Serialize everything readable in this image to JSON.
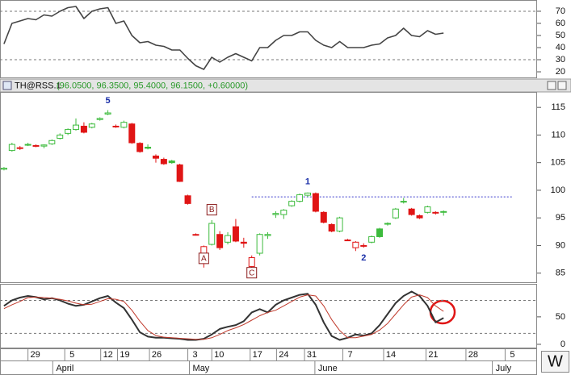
{
  "chart_data": [
    {
      "type": "line",
      "yticks": [
        20,
        30,
        40,
        50,
        60,
        70
      ],
      "ylim": [
        14.7,
        79.3
      ],
      "hlines": [
        70,
        30
      ],
      "color": "#444444",
      "values": [
        43,
        60,
        62,
        64,
        63,
        67,
        66,
        70,
        73,
        74,
        64,
        70,
        72,
        73,
        60,
        62,
        50,
        44,
        45,
        42,
        41,
        38,
        38,
        31,
        25,
        22,
        32,
        28,
        32,
        35,
        32,
        29,
        40,
        40,
        46,
        50,
        50,
        53,
        53,
        46,
        42,
        40,
        45,
        40,
        40,
        40,
        42,
        43,
        48,
        50,
        56,
        50,
        49,
        54,
        51,
        52
      ]
    },
    {
      "type": "candlestick",
      "title": "TH@RSS.1",
      "subtitle": "(96.0500, 96.3500, 95.4000, 96.1500, +0.60000)",
      "yticks": [
        85,
        90,
        95,
        100,
        105,
        110,
        115
      ],
      "ylim": [
        83.2,
        117.8
      ],
      "up_color": "#3dbb3d",
      "down_color": "#e01515",
      "open": [
        103.8,
        107.2,
        107.7,
        108.3,
        108.0,
        108.0,
        108.4,
        109.4,
        110.3,
        111.0,
        111.6,
        111.4,
        112.8,
        113.8,
        111.5,
        111.4,
        112.0,
        108.5,
        107.8,
        106.2,
        105.6,
        105.3,
        104.6,
        99.0,
        92.0,
        88.2,
        90.2,
        92.0,
        90.6,
        93.4,
        90.6,
        86.2,
        88.6,
        91.8,
        95.6,
        95.6,
        97.2,
        98.0,
        99.1,
        99.4,
        96.0,
        93.8,
        92.6,
        91.0,
        89.6,
        90.0,
        90.6,
        93.0,
        94.0,
        95.0,
        98.0,
        96.6,
        95.4,
        96.0,
        96.0,
        96.05
      ],
      "high": [
        104.2,
        108.6,
        108.0,
        108.6,
        108.3,
        108.3,
        109.2,
        110.3,
        111.2,
        113.0,
        112.3,
        112.2,
        113.2,
        114.5,
        111.9,
        112.6,
        112.2,
        108.7,
        108.3,
        106.5,
        105.9,
        105.5,
        104.8,
        99.2,
        92.2,
        90.0,
        94.6,
        92.6,
        92.4,
        94.8,
        91.4,
        88.2,
        92.2,
        92.4,
        96.2,
        96.6,
        98.2,
        99.4,
        99.6,
        99.6,
        96.2,
        94.0,
        95.2,
        91.2,
        90.8,
        90.4,
        91.8,
        93.2,
        94.2,
        96.8,
        98.6,
        96.8,
        95.6,
        97.2,
        96.2,
        96.35
      ],
      "low": [
        103.6,
        107.0,
        107.3,
        108.0,
        107.8,
        107.6,
        108.2,
        109.2,
        110.0,
        110.8,
        110.3,
        111.2,
        112.6,
        113.6,
        111.3,
        111.2,
        108.4,
        106.8,
        107.4,
        105.0,
        104.6,
        104.8,
        101.5,
        97.4,
        91.8,
        86.0,
        90.0,
        89.2,
        90.2,
        90.6,
        89.6,
        85.8,
        88.2,
        91.2,
        95.0,
        94.8,
        97.0,
        97.8,
        98.8,
        96.0,
        94.0,
        92.4,
        92.4,
        90.8,
        89.0,
        89.6,
        90.4,
        91.4,
        93.6,
        94.8,
        97.6,
        95.4,
        94.8,
        95.8,
        95.6,
        95.4
      ],
      "close": [
        104.0,
        108.3,
        107.6,
        108.3,
        108.1,
        108.2,
        109.0,
        110.0,
        111.0,
        111.8,
        110.5,
        112.0,
        113.0,
        114.0,
        111.6,
        112.3,
        108.6,
        107.0,
        107.6,
        105.8,
        104.8,
        105.0,
        101.6,
        97.6,
        92.0,
        89.8,
        94.0,
        89.6,
        91.8,
        90.8,
        90.4,
        87.8,
        92.0,
        92.0,
        95.8,
        96.4,
        98.0,
        99.2,
        99.5,
        96.2,
        94.2,
        92.6,
        95.0,
        91.0,
        90.6,
        90.0,
        91.6,
        91.6,
        94.0,
        96.6,
        98.0,
        95.6,
        95.0,
        97.0,
        96.0,
        96.15
      ],
      "reference_line": {
        "value": 98.8,
        "from": 31,
        "to": 63.7,
        "color": "#3a3acc"
      },
      "annotations": [
        {
          "text": "5",
          "x": 13,
          "y": 116.2,
          "color": "#1a2fa8",
          "boxed": false
        },
        {
          "text": "1",
          "x": 38,
          "y": 101.5,
          "color": "#1a2fa8",
          "boxed": false
        },
        {
          "text": "2",
          "x": 45,
          "y": 87.7,
          "color": "#1a2fa8",
          "boxed": false
        },
        {
          "text": "A",
          "x": 25,
          "y": 87.6,
          "color": "#8b1a1a",
          "boxed": true
        },
        {
          "text": "B",
          "x": 26,
          "y": 96.4,
          "color": "#8b1a1a",
          "boxed": true
        },
        {
          "text": "C",
          "x": 31,
          "y": 85.0,
          "color": "#8b1a1a",
          "boxed": true
        }
      ]
    },
    {
      "type": "line",
      "yticks": [
        0,
        50
      ],
      "ylim": [
        -7.4,
        110
      ],
      "hlines": [
        80,
        20
      ],
      "xlim": [
        -0.5,
        66.7
      ],
      "xticks": [
        {
          "value": 3.0,
          "label": "29"
        },
        {
          "value": 7.6,
          "label": "5"
        },
        {
          "value": 12.1,
          "label": "12"
        },
        {
          "value": 14.2,
          "label": "19"
        },
        {
          "value": 18.2,
          "label": "26"
        },
        {
          "value": 23.0,
          "label": "3"
        },
        {
          "value": 26.0,
          "label": "10"
        },
        {
          "value": 30.8,
          "label": "17"
        },
        {
          "value": 34.1,
          "label": "24"
        },
        {
          "value": 37.6,
          "label": "31"
        },
        {
          "value": 42.4,
          "label": "7"
        },
        {
          "value": 47.5,
          "label": "14"
        },
        {
          "value": 52.8,
          "label": "21"
        },
        {
          "value": 57.8,
          "label": "28"
        },
        {
          "value": 62.7,
          "label": "5"
        }
      ],
      "month_ticks": [
        {
          "value": 6.1,
          "label": "April"
        },
        {
          "value": 23.2,
          "label": "May"
        },
        {
          "value": 38.9,
          "label": "June"
        },
        {
          "value": 61.1,
          "label": "July"
        }
      ],
      "series": [
        {
          "color": "#333333",
          "values": [
            70,
            80,
            85,
            88,
            86,
            82,
            84,
            80,
            74,
            70,
            72,
            78,
            84,
            88,
            76,
            66,
            45,
            22,
            14,
            12,
            12,
            11,
            10,
            8,
            8,
            10,
            18,
            28,
            32,
            35,
            42,
            58,
            64,
            58,
            72,
            80,
            85,
            90,
            92,
            72,
            40,
            15,
            8,
            12,
            18,
            16,
            20,
            35,
            55,
            75,
            88,
            96,
            88,
            70,
            40,
            48
          ]
        },
        {
          "color": "#c0392b",
          "values": [
            65,
            72,
            78,
            85,
            86,
            85,
            84,
            82,
            79,
            75,
            72,
            73,
            78,
            83,
            82,
            78,
            62,
            42,
            25,
            16,
            13,
            12,
            11,
            10,
            9,
            9,
            12,
            18,
            25,
            30,
            36,
            44,
            52,
            58,
            62,
            70,
            78,
            86,
            90,
            88,
            70,
            45,
            25,
            12,
            12,
            15,
            18,
            26,
            38,
            55,
            72,
            86,
            90,
            85,
            70,
            60
          ]
        }
      ]
    }
  ],
  "ui": {
    "button": "W"
  }
}
